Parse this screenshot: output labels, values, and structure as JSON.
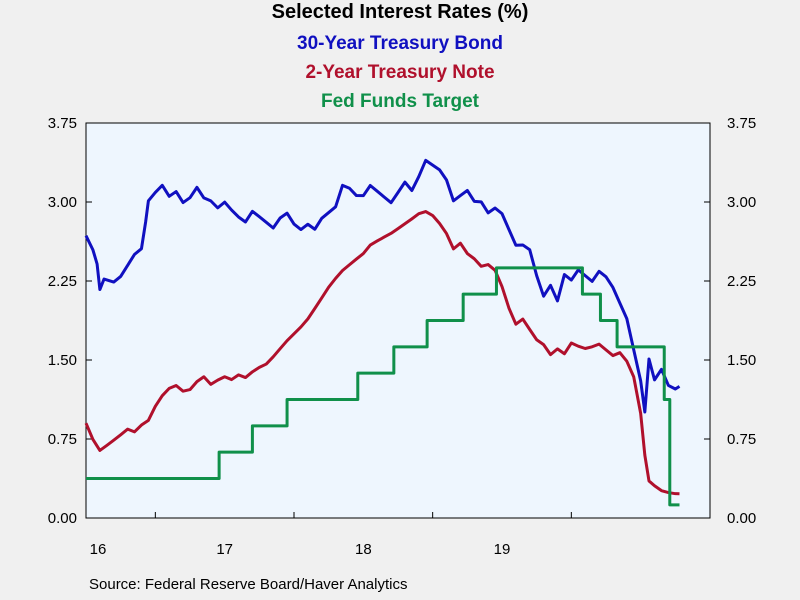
{
  "chart_data": {
    "type": "line",
    "title": "Selected Interest Rates (%)",
    "ylim": [
      0.0,
      3.75
    ],
    "yticks": [
      "0.00",
      "0.75",
      "1.50",
      "2.25",
      "3.00",
      "3.75"
    ],
    "xlim": [
      2016.0,
      2020.5
    ],
    "xtick_labels": [
      "16",
      "17",
      "18",
      "19"
    ],
    "grid": false,
    "legend_placement": "top-center",
    "source": "Source:  Federal Reserve Board/Haver Analytics",
    "series": [
      {
        "name": "30-Year Treasury Bond",
        "color": "#1010c0",
        "points": [
          [
            2016.0,
            2.68
          ],
          [
            2016.05,
            2.55
          ],
          [
            2016.08,
            2.42
          ],
          [
            2016.1,
            2.18
          ],
          [
            2016.13,
            2.28
          ],
          [
            2016.2,
            2.25
          ],
          [
            2016.25,
            2.3
          ],
          [
            2016.3,
            2.4
          ],
          [
            2016.35,
            2.5
          ],
          [
            2016.4,
            2.55
          ],
          [
            2016.43,
            2.8
          ],
          [
            2016.45,
            3.0
          ],
          [
            2016.5,
            3.08
          ],
          [
            2016.55,
            3.15
          ],
          [
            2016.6,
            3.05
          ],
          [
            2016.65,
            3.1
          ],
          [
            2016.7,
            3.0
          ],
          [
            2016.75,
            3.05
          ],
          [
            2016.8,
            3.15
          ],
          [
            2016.85,
            3.05
          ],
          [
            2016.9,
            3.02
          ],
          [
            2016.95,
            2.95
          ],
          [
            2017.0,
            3.0
          ],
          [
            2017.05,
            2.92
          ],
          [
            2017.1,
            2.85
          ],
          [
            2017.15,
            2.8
          ],
          [
            2017.2,
            2.9
          ],
          [
            2017.25,
            2.85
          ],
          [
            2017.3,
            2.8
          ],
          [
            2017.35,
            2.75
          ],
          [
            2017.4,
            2.85
          ],
          [
            2017.45,
            2.9
          ],
          [
            2017.5,
            2.8
          ],
          [
            2017.55,
            2.75
          ],
          [
            2017.6,
            2.8
          ],
          [
            2017.65,
            2.75
          ],
          [
            2017.7,
            2.85
          ],
          [
            2017.75,
            2.9
          ],
          [
            2017.8,
            2.95
          ],
          [
            2017.85,
            3.15
          ],
          [
            2017.9,
            3.12
          ],
          [
            2017.95,
            3.05
          ],
          [
            2018.0,
            3.05
          ],
          [
            2018.05,
            3.15
          ],
          [
            2018.1,
            3.1
          ],
          [
            2018.15,
            3.05
          ],
          [
            2018.2,
            3.0
          ],
          [
            2018.25,
            3.1
          ],
          [
            2018.3,
            3.2
          ],
          [
            2018.35,
            3.12
          ],
          [
            2018.4,
            3.25
          ],
          [
            2018.45,
            3.4
          ],
          [
            2018.5,
            3.35
          ],
          [
            2018.55,
            3.3
          ],
          [
            2018.6,
            3.2
          ],
          [
            2018.65,
            3.0
          ],
          [
            2018.7,
            3.05
          ],
          [
            2018.75,
            3.1
          ],
          [
            2018.8,
            3.0
          ],
          [
            2018.85,
            3.0
          ],
          [
            2018.9,
            2.9
          ],
          [
            2018.95,
            2.95
          ],
          [
            2019.0,
            2.9
          ],
          [
            2019.05,
            2.75
          ],
          [
            2019.1,
            2.6
          ],
          [
            2019.15,
            2.6
          ],
          [
            2019.2,
            2.55
          ],
          [
            2019.25,
            2.3
          ],
          [
            2019.3,
            2.1
          ],
          [
            2019.35,
            2.2
          ],
          [
            2019.4,
            2.05
          ],
          [
            2019.45,
            2.3
          ],
          [
            2019.5,
            2.25
          ],
          [
            2019.55,
            2.35
          ],
          [
            2019.6,
            2.3
          ],
          [
            2019.65,
            2.25
          ],
          [
            2019.7,
            2.35
          ],
          [
            2019.75,
            2.3
          ],
          [
            2019.8,
            2.2
          ],
          [
            2019.85,
            2.05
          ],
          [
            2019.9,
            1.9
          ],
          [
            2019.95,
            1.6
          ],
          [
            2020.0,
            1.3
          ],
          [
            2020.03,
            1.0
          ],
          [
            2020.06,
            1.5
          ],
          [
            2020.1,
            1.3
          ],
          [
            2020.15,
            1.4
          ],
          [
            2020.2,
            1.25
          ],
          [
            2020.25,
            1.22
          ],
          [
            2020.28,
            1.25
          ]
        ]
      },
      {
        "name": "2-Year Treasury Note",
        "color": "#b0102c",
        "points": [
          [
            2016.0,
            0.9
          ],
          [
            2016.05,
            0.75
          ],
          [
            2016.1,
            0.65
          ],
          [
            2016.15,
            0.7
          ],
          [
            2016.2,
            0.75
          ],
          [
            2016.25,
            0.8
          ],
          [
            2016.3,
            0.85
          ],
          [
            2016.35,
            0.82
          ],
          [
            2016.4,
            0.88
          ],
          [
            2016.45,
            0.92
          ],
          [
            2016.5,
            1.05
          ],
          [
            2016.55,
            1.15
          ],
          [
            2016.6,
            1.22
          ],
          [
            2016.65,
            1.25
          ],
          [
            2016.7,
            1.2
          ],
          [
            2016.75,
            1.22
          ],
          [
            2016.8,
            1.3
          ],
          [
            2016.85,
            1.35
          ],
          [
            2016.9,
            1.28
          ],
          [
            2016.95,
            1.32
          ],
          [
            2017.0,
            1.35
          ],
          [
            2017.05,
            1.32
          ],
          [
            2017.1,
            1.36
          ],
          [
            2017.15,
            1.33
          ],
          [
            2017.2,
            1.38
          ],
          [
            2017.25,
            1.42
          ],
          [
            2017.3,
            1.45
          ],
          [
            2017.35,
            1.52
          ],
          [
            2017.4,
            1.6
          ],
          [
            2017.45,
            1.68
          ],
          [
            2017.5,
            1.75
          ],
          [
            2017.55,
            1.82
          ],
          [
            2017.6,
            1.9
          ],
          [
            2017.65,
            2.0
          ],
          [
            2017.7,
            2.1
          ],
          [
            2017.75,
            2.2
          ],
          [
            2017.8,
            2.28
          ],
          [
            2017.85,
            2.35
          ],
          [
            2017.9,
            2.4
          ],
          [
            2017.95,
            2.45
          ],
          [
            2018.0,
            2.5
          ],
          [
            2018.05,
            2.58
          ],
          [
            2018.1,
            2.62
          ],
          [
            2018.15,
            2.66
          ],
          [
            2018.2,
            2.7
          ],
          [
            2018.25,
            2.75
          ],
          [
            2018.3,
            2.8
          ],
          [
            2018.35,
            2.85
          ],
          [
            2018.4,
            2.9
          ],
          [
            2018.45,
            2.92
          ],
          [
            2018.5,
            2.88
          ],
          [
            2018.55,
            2.8
          ],
          [
            2018.6,
            2.7
          ],
          [
            2018.65,
            2.55
          ],
          [
            2018.7,
            2.6
          ],
          [
            2018.75,
            2.5
          ],
          [
            2018.8,
            2.45
          ],
          [
            2018.85,
            2.38
          ],
          [
            2018.9,
            2.4
          ],
          [
            2018.95,
            2.35
          ],
          [
            2019.0,
            2.2
          ],
          [
            2019.05,
            2.0
          ],
          [
            2019.1,
            1.85
          ],
          [
            2019.15,
            1.9
          ],
          [
            2019.2,
            1.8
          ],
          [
            2019.25,
            1.7
          ],
          [
            2019.3,
            1.65
          ],
          [
            2019.35,
            1.55
          ],
          [
            2019.4,
            1.6
          ],
          [
            2019.45,
            1.55
          ],
          [
            2019.5,
            1.65
          ],
          [
            2019.55,
            1.62
          ],
          [
            2019.6,
            1.6
          ],
          [
            2019.65,
            1.62
          ],
          [
            2019.7,
            1.65
          ],
          [
            2019.75,
            1.6
          ],
          [
            2019.8,
            1.55
          ],
          [
            2019.85,
            1.58
          ],
          [
            2019.9,
            1.5
          ],
          [
            2019.95,
            1.35
          ],
          [
            2020.0,
            1.0
          ],
          [
            2020.03,
            0.6
          ],
          [
            2020.06,
            0.35
          ],
          [
            2020.1,
            0.3
          ],
          [
            2020.15,
            0.25
          ],
          [
            2020.2,
            0.23
          ],
          [
            2020.25,
            0.22
          ],
          [
            2020.28,
            0.23
          ]
        ]
      },
      {
        "name": "Fed Funds Target",
        "color": "#10904a",
        "step": true,
        "points": [
          [
            2016.0,
            0.375
          ],
          [
            2016.96,
            0.625
          ],
          [
            2017.2,
            0.875
          ],
          [
            2017.45,
            1.125
          ],
          [
            2017.96,
            1.375
          ],
          [
            2018.22,
            1.625
          ],
          [
            2018.46,
            1.875
          ],
          [
            2018.72,
            2.125
          ],
          [
            2018.96,
            2.375
          ],
          [
            2019.58,
            2.125
          ],
          [
            2019.71,
            1.875
          ],
          [
            2019.83,
            1.625
          ],
          [
            2020.17,
            1.125
          ],
          [
            2020.21,
            0.125
          ],
          [
            2020.28,
            0.125
          ]
        ]
      }
    ]
  }
}
